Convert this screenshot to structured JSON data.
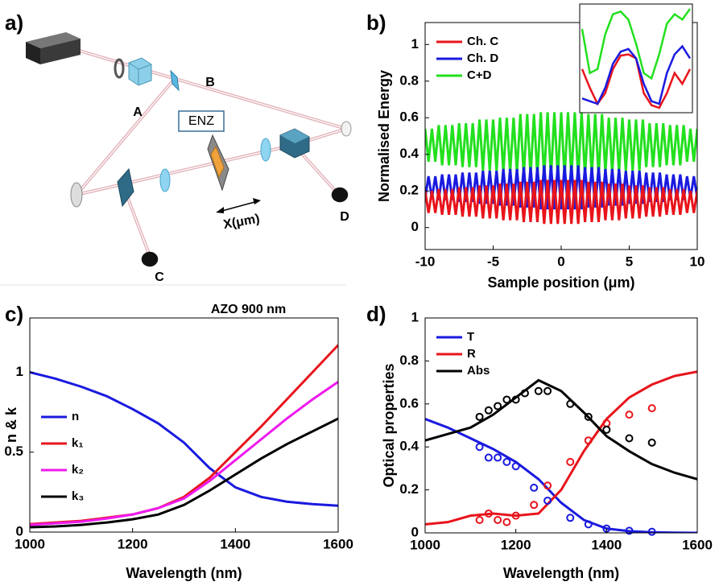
{
  "diagram": {
    "panel_label": "a)",
    "labels": [
      "A",
      "B",
      "ENZ",
      "X(μm)",
      "C",
      "D"
    ]
  },
  "chart_data": [
    {
      "type": "line",
      "panel_label": "b)",
      "x_label": "Sample position (μm)",
      "y_label": "Normalised Energy",
      "xlim": [
        -10,
        10
      ],
      "xticks": [
        -10,
        -5,
        0,
        5,
        10
      ],
      "ylim": [
        -0.12,
        1.12
      ],
      "yticks": [
        0,
        0.2,
        0.4,
        0.6,
        0.8,
        1
      ],
      "legend": "upper left",
      "x": [
        -10,
        -9.75,
        -9.5,
        -9.25,
        -9,
        -8.75,
        -8.5,
        -8.25,
        -8,
        -7.75,
        -7.5,
        -7.25,
        -7,
        -6.75,
        -6.5,
        -6.25,
        -6,
        -5.75,
        -5.5,
        -5.25,
        -5,
        -4.75,
        -4.5,
        -4.25,
        -4,
        -3.75,
        -3.5,
        -3.25,
        -3,
        -2.75,
        -2.5,
        -2.25,
        -2,
        -1.75,
        -1.5,
        -1.25,
        -1,
        -0.75,
        -0.5,
        -0.25,
        0,
        0.25,
        0.5,
        0.75,
        1,
        1.25,
        1.5,
        1.75,
        2,
        2.25,
        2.5,
        2.75,
        3,
        3.25,
        3.5,
        3.75,
        4,
        4.25,
        4.5,
        4.75,
        5,
        5.25,
        5.5,
        5.75,
        6,
        6.25,
        6.5,
        6.75,
        7,
        7.25,
        7.5,
        7.75,
        8,
        8.25,
        8.5,
        8.75,
        9,
        9.25,
        9.5,
        9.75,
        10
      ],
      "series": [
        {
          "name": "C+D",
          "color": "#22e01e",
          "values": [
            0.54,
            0.36,
            0.54,
            0.36,
            0.56,
            0.34,
            0.56,
            0.34,
            0.56,
            0.34,
            0.57,
            0.33,
            0.57,
            0.33,
            0.57,
            0.33,
            0.59,
            0.31,
            0.59,
            0.31,
            0.59,
            0.31,
            0.6,
            0.3,
            0.6,
            0.3,
            0.6,
            0.3,
            0.62,
            0.28,
            0.62,
            0.28,
            0.62,
            0.28,
            0.63,
            0.27,
            0.63,
            0.27,
            0.63,
            0.27,
            0.63,
            0.27,
            0.63,
            0.27,
            0.63,
            0.27,
            0.63,
            0.28,
            0.62,
            0.28,
            0.62,
            0.28,
            0.62,
            0.3,
            0.6,
            0.3,
            0.6,
            0.3,
            0.6,
            0.31,
            0.59,
            0.31,
            0.59,
            0.31,
            0.59,
            0.33,
            0.57,
            0.33,
            0.57,
            0.33,
            0.57,
            0.34,
            0.56,
            0.34,
            0.56,
            0.34,
            0.56,
            0.36,
            0.54,
            0.36,
            0.54
          ]
        },
        {
          "name": "Ch. D",
          "color": "#1a1adf",
          "values": [
            0.16,
            0.28,
            0.16,
            0.28,
            0.15,
            0.29,
            0.15,
            0.29,
            0.15,
            0.29,
            0.14,
            0.3,
            0.14,
            0.3,
            0.14,
            0.3,
            0.13,
            0.31,
            0.13,
            0.31,
            0.13,
            0.31,
            0.12,
            0.32,
            0.12,
            0.32,
            0.12,
            0.32,
            0.11,
            0.33,
            0.11,
            0.33,
            0.11,
            0.33,
            0.1,
            0.34,
            0.1,
            0.34,
            0.1,
            0.34,
            0.1,
            0.34,
            0.1,
            0.34,
            0.1,
            0.34,
            0.1,
            0.33,
            0.11,
            0.33,
            0.11,
            0.33,
            0.11,
            0.32,
            0.12,
            0.32,
            0.12,
            0.32,
            0.12,
            0.31,
            0.13,
            0.31,
            0.13,
            0.31,
            0.13,
            0.3,
            0.14,
            0.3,
            0.14,
            0.3,
            0.14,
            0.29,
            0.15,
            0.29,
            0.15,
            0.29,
            0.15,
            0.28,
            0.16,
            0.28,
            0.16
          ]
        },
        {
          "name": "Ch. C",
          "color": "#e8141b",
          "values": [
            0.2,
            0.08,
            0.2,
            0.08,
            0.21,
            0.07,
            0.21,
            0.07,
            0.21,
            0.07,
            0.22,
            0.06,
            0.22,
            0.06,
            0.22,
            0.06,
            0.23,
            0.05,
            0.23,
            0.05,
            0.23,
            0.05,
            0.24,
            0.04,
            0.24,
            0.04,
            0.24,
            0.04,
            0.25,
            0.03,
            0.25,
            0.03,
            0.25,
            0.03,
            0.26,
            0.02,
            0.26,
            0.02,
            0.26,
            0.02,
            0.26,
            0.02,
            0.26,
            0.02,
            0.26,
            0.02,
            0.26,
            0.03,
            0.25,
            0.03,
            0.25,
            0.03,
            0.25,
            0.04,
            0.24,
            0.04,
            0.24,
            0.04,
            0.24,
            0.05,
            0.23,
            0.05,
            0.23,
            0.05,
            0.23,
            0.06,
            0.22,
            0.06,
            0.22,
            0.06,
            0.22,
            0.07,
            0.21,
            0.07,
            0.21,
            0.07,
            0.21,
            0.08,
            0.2,
            0.08,
            0.2
          ]
        }
      ],
      "legend_order": [
        2,
        1,
        0
      ],
      "inset": {
        "series": [
          {
            "color": "#22e01e",
            "values": [
              0.63,
              0.3,
              0.33,
              0.59,
              0.74,
              0.76,
              0.7,
              0.52,
              0.3,
              0.26,
              0.44,
              0.67,
              0.74,
              0.7,
              0.78
            ]
          },
          {
            "color": "#e8141b",
            "values": [
              0.33,
              0.19,
              0.07,
              0.15,
              0.33,
              0.43,
              0.44,
              0.41,
              0.15,
              0.06,
              0.04,
              0.15,
              0.3,
              0.22,
              0.33
            ]
          },
          {
            "color": "#1a1adf",
            "values": [
              0.11,
              0.09,
              0.07,
              0.19,
              0.37,
              0.46,
              0.48,
              0.41,
              0.22,
              0.09,
              0.07,
              0.3,
              0.44,
              0.5,
              0.41
            ]
          }
        ]
      }
    },
    {
      "type": "line",
      "panel_label": "c)",
      "title": "AZO 900 nm",
      "x_label": "Wavelength (nm)",
      "y_label": "n & k",
      "xlim": [
        1000,
        1600
      ],
      "xticks": [
        1000,
        1200,
        1400,
        1600
      ],
      "ylim": [
        0,
        1.34
      ],
      "yticks": [
        0,
        0.5,
        1
      ],
      "legend": "center left",
      "x": [
        1000,
        1050,
        1100,
        1150,
        1200,
        1250,
        1300,
        1350,
        1400,
        1450,
        1500,
        1550,
        1600
      ],
      "series": [
        {
          "name": "n",
          "color": "#1a1adf",
          "values": [
            1.0,
            0.96,
            0.91,
            0.85,
            0.77,
            0.68,
            0.56,
            0.4,
            0.28,
            0.22,
            0.19,
            0.175,
            0.165
          ]
        },
        {
          "name": "k₁",
          "color": "#e8141b",
          "values": [
            0.05,
            0.06,
            0.07,
            0.09,
            0.11,
            0.15,
            0.22,
            0.34,
            0.5,
            0.66,
            0.83,
            1.0,
            1.17
          ]
        },
        {
          "name": "k₂",
          "color": "#ee1aee",
          "values": [
            0.045,
            0.055,
            0.065,
            0.085,
            0.11,
            0.15,
            0.21,
            0.32,
            0.45,
            0.58,
            0.71,
            0.83,
            0.94
          ]
        },
        {
          "name": "k₃",
          "color": "#000000",
          "values": [
            0.03,
            0.035,
            0.045,
            0.06,
            0.08,
            0.11,
            0.17,
            0.26,
            0.36,
            0.46,
            0.55,
            0.63,
            0.71
          ]
        }
      ]
    },
    {
      "type": "line",
      "panel_label": "d)",
      "x_label": "Wavelength (nm)",
      "y_label": "Optical properties",
      "xlim": [
        1000,
        1600
      ],
      "xticks": [
        1000,
        1200,
        1400,
        1600
      ],
      "ylim": [
        0,
        1
      ],
      "yticks": [
        0,
        0.2,
        0.4,
        0.6,
        0.8,
        1
      ],
      "legend": "upper left",
      "x": [
        1000,
        1050,
        1100,
        1150,
        1200,
        1250,
        1300,
        1350,
        1400,
        1450,
        1500,
        1550,
        1600
      ],
      "series": [
        {
          "name": "T",
          "color": "#1a1adf",
          "values": [
            0.53,
            0.49,
            0.44,
            0.39,
            0.33,
            0.25,
            0.14,
            0.06,
            0.02,
            0.008,
            0.003,
            0.001,
            0
          ]
        },
        {
          "name": "R",
          "color": "#e8141b",
          "values": [
            0.04,
            0.05,
            0.08,
            0.09,
            0.08,
            0.09,
            0.2,
            0.38,
            0.53,
            0.63,
            0.69,
            0.73,
            0.75
          ]
        },
        {
          "name": "Abs",
          "color": "#000000",
          "values": [
            0.43,
            0.46,
            0.49,
            0.55,
            0.63,
            0.71,
            0.66,
            0.56,
            0.45,
            0.38,
            0.32,
            0.28,
            0.25
          ]
        }
      ],
      "measured": [
        {
          "color": "#1a1adf",
          "x": [
            1120,
            1140,
            1160,
            1180,
            1200,
            1240,
            1270,
            1320,
            1360,
            1400,
            1450,
            1500
          ],
          "values": [
            0.4,
            0.35,
            0.35,
            0.33,
            0.31,
            0.21,
            0.15,
            0.07,
            0.04,
            0.02,
            0.01,
            0.005
          ]
        },
        {
          "color": "#e8141b",
          "x": [
            1120,
            1140,
            1160,
            1180,
            1200,
            1240,
            1270,
            1320,
            1360,
            1400,
            1450,
            1500
          ],
          "values": [
            0.06,
            0.09,
            0.06,
            0.05,
            0.08,
            0.13,
            0.22,
            0.33,
            0.43,
            0.51,
            0.55,
            0.58
          ]
        },
        {
          "color": "#000000",
          "x": [
            1120,
            1140,
            1160,
            1180,
            1200,
            1220,
            1250,
            1270,
            1320,
            1360,
            1400,
            1450,
            1500
          ],
          "values": [
            0.54,
            0.57,
            0.59,
            0.62,
            0.62,
            0.65,
            0.66,
            0.66,
            0.6,
            0.54,
            0.48,
            0.44,
            0.42
          ]
        }
      ]
    }
  ]
}
